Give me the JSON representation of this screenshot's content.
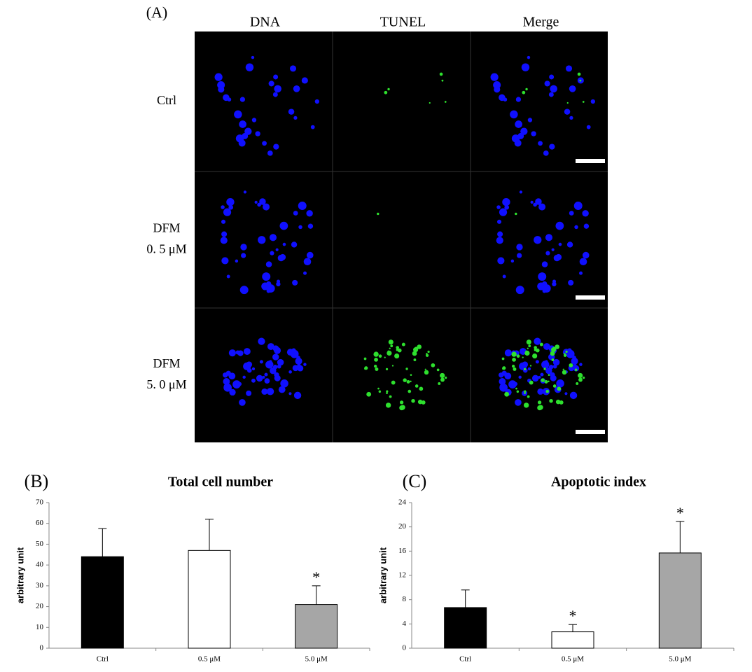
{
  "panel_a": {
    "label": "(A)",
    "columns": [
      "DNA",
      "TUNEL",
      "Merge"
    ],
    "rows": [
      [
        "Ctrl"
      ],
      [
        "DFM",
        "0. 5  μM"
      ],
      [
        "DFM",
        "5. 0  μM"
      ]
    ]
  },
  "chart_data": [
    {
      "type": "bar",
      "panel_label": "(B)",
      "title": "Total cell number",
      "y_label": "arbitrary unit",
      "categories": [
        "Ctrl",
        "0.5 μM",
        "5.0 μM"
      ],
      "values": [
        44,
        47,
        21
      ],
      "errors": [
        13.5,
        15,
        9
      ],
      "significance": [
        null,
        null,
        "*"
      ],
      "colors": [
        "#000000",
        "#ffffff",
        "#a6a6a6"
      ],
      "ylim": [
        0,
        70
      ],
      "yticks": [
        0,
        10,
        20,
        30,
        40,
        50,
        60,
        70
      ]
    },
    {
      "type": "bar",
      "panel_label": "(C)",
      "title": "Apoptotic index",
      "y_label": "arbitrary unit",
      "categories": [
        "Ctrl",
        "0.5 μM",
        "5.0 μM"
      ],
      "values": [
        6.7,
        2.7,
        15.7
      ],
      "errors": [
        2.9,
        1.2,
        5.2
      ],
      "significance": [
        null,
        "*",
        "*"
      ],
      "colors": [
        "#000000",
        "#ffffff",
        "#a6a6a6"
      ],
      "ylim": [
        0,
        24
      ],
      "yticks": [
        0,
        4,
        8,
        12,
        16,
        20,
        24
      ]
    }
  ]
}
